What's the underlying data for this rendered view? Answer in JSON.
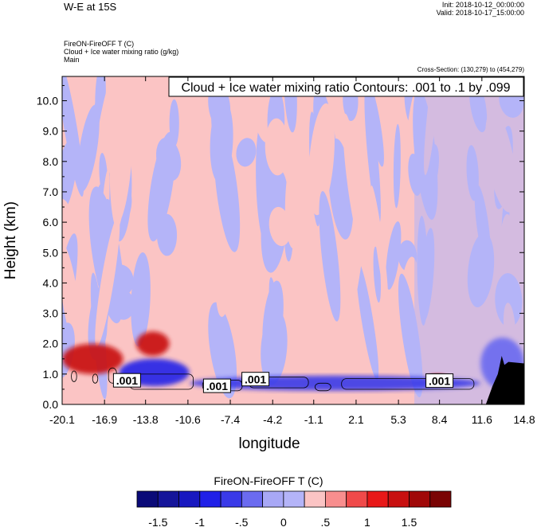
{
  "header": {
    "title": "W-E at 15S",
    "init": "Init: 2018-10-12_00:00:00",
    "valid": "Valid: 2018-10-17_15:00:00",
    "field": "FireON-FireOFF T   (C)",
    "overlay_field": "Cloud + Ice water mixing ratio   (g/kg)",
    "domain": "Main",
    "cross_section": "Cross-Section: (130,279) to (454,279)"
  },
  "chart_data": {
    "type": "heatmap",
    "contour_note": "Cloud + Ice water mixing ratio Contours: .001 to .1 by .099",
    "contour_labels": [
      {
        "text": ".001",
        "x": -15.2,
        "y": 0.78
      },
      {
        "text": ".001",
        "x": -8.4,
        "y": 0.6
      },
      {
        "text": ".001",
        "x": -5.5,
        "y": 0.82
      },
      {
        "text": ".001",
        "x": 8.4,
        "y": 0.77
      }
    ],
    "xlabel": "longitude",
    "ylabel": "Height (km)",
    "x_ticks": [
      "-20.1",
      "-16.9",
      "-13.8",
      "-10.6",
      "-7.4",
      "-4.2",
      "-1.1",
      "2.1",
      "5.3",
      "8.4",
      "11.6",
      "14.8"
    ],
    "y_ticks": [
      "0.0",
      "1.0",
      "2.0",
      "3.0",
      "4.0",
      "5.0",
      "6.0",
      "7.0",
      "8.0",
      "9.0",
      "10.0"
    ],
    "xlim": [
      -20.1,
      14.8
    ],
    "ylim": [
      0,
      10.8
    ],
    "colorbar": {
      "title": "FireON-FireOFF T  (C)",
      "labels": [
        "-1.5",
        "-1",
        "-.5",
        "0",
        ".5",
        "1",
        "1.5"
      ],
      "levels": [
        -1.75,
        -1.5,
        -1.25,
        -1.0,
        -0.75,
        -0.5,
        -0.25,
        0,
        0.25,
        0.5,
        0.75,
        1.0,
        1.25,
        1.5,
        1.75
      ],
      "colors": [
        "#0a0a78",
        "#15159a",
        "#1818c0",
        "#2020e8",
        "#3a3ae8",
        "#6b6bf0",
        "#a8a8f6",
        "#b4b4f8",
        "#fbc4c4",
        "#f88e8e",
        "#f04a4a",
        "#e81818",
        "#c81010",
        "#a00808",
        "#7a0404"
      ]
    },
    "terrain_color": "#000000",
    "anomaly_features": [
      {
        "x": [
          -20.1,
          -15.5
        ],
        "y": [
          1.0,
          2.0
        ],
        "value": 1.0
      },
      {
        "x": [
          -15.8,
          -10.5
        ],
        "y": [
          0.6,
          1.5
        ],
        "value": -1.25
      },
      {
        "x": [
          -14.5,
          -12.0
        ],
        "y": [
          1.6,
          2.4
        ],
        "value": 1.0
      },
      {
        "x": [
          -10.5,
          11.5
        ],
        "y": [
          0.45,
          0.95
        ],
        "value": -1.0
      },
      {
        "x": [
          7.5,
          9.0
        ],
        "y": [
          0.7,
          1.0
        ],
        "value": 1.25
      },
      {
        "x": [
          11.5,
          14.8
        ],
        "y": [
          0.5,
          2.2
        ],
        "value": -0.75
      }
    ]
  }
}
